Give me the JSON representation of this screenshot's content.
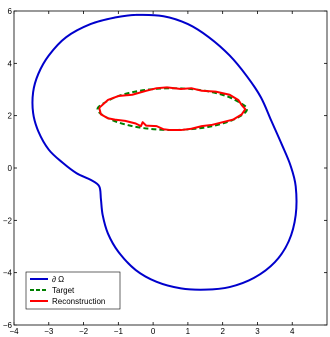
{
  "chart_data": {
    "type": "line",
    "title": "",
    "xlabel": "",
    "ylabel": "",
    "xlim": [
      -4,
      5
    ],
    "ylim": [
      -6,
      6
    ],
    "x_ticks": [
      -4,
      -3,
      -2,
      -1,
      0,
      1,
      2,
      3,
      4
    ],
    "x_tick_labels": [
      "−4",
      "−3",
      "−2",
      "−1",
      "0",
      "1",
      "2",
      "3",
      "4"
    ],
    "y_ticks": [
      -6,
      -4,
      -2,
      0,
      2,
      4,
      6
    ],
    "y_tick_labels": [
      "−6",
      "−4",
      "−2",
      "0",
      "2",
      "4",
      "6"
    ],
    "grid": false,
    "legend_position": "bottom-left",
    "series": [
      {
        "name": "∂ Ω",
        "color": "#0000cc",
        "style": "solid",
        "x": [
          -0.5,
          0.3,
          1.0,
          1.6,
          2.2,
          2.7,
          3.1,
          3.4,
          3.7,
          3.95,
          4.1,
          4.1,
          3.9,
          3.5,
          2.9,
          2.2,
          1.5,
          0.8,
          0.1,
          -0.5,
          -1.0,
          -1.3,
          -1.45,
          -1.5,
          -1.55,
          -1.8,
          -2.2,
          -2.6,
          -3.0,
          -3.3,
          -3.45,
          -3.45,
          -3.3,
          -3.0,
          -2.5,
          -1.8,
          -1.1,
          -0.5
        ],
        "y": [
          5.85,
          5.8,
          5.5,
          5.0,
          4.3,
          3.5,
          2.7,
          1.8,
          0.9,
          0.1,
          -0.7,
          -1.8,
          -2.8,
          -3.6,
          -4.2,
          -4.55,
          -4.65,
          -4.6,
          -4.35,
          -3.9,
          -3.2,
          -2.5,
          -1.8,
          -1.2,
          -0.7,
          -0.45,
          -0.2,
          0.2,
          0.7,
          1.4,
          2.1,
          2.9,
          3.6,
          4.3,
          5.0,
          5.5,
          5.75,
          5.85
        ]
      },
      {
        "name": "Target",
        "color": "#008000",
        "style": "dashed",
        "x": [
          0.55,
          1.4,
          2.1,
          2.55,
          2.7,
          2.55,
          2.1,
          1.4,
          0.55,
          -0.3,
          -1.0,
          -1.45,
          -1.6,
          -1.45,
          -1.0,
          -0.3,
          0.55
        ],
        "y": [
          3.05,
          2.97,
          2.75,
          2.45,
          2.25,
          2.02,
          1.74,
          1.53,
          1.45,
          1.53,
          1.74,
          2.02,
          2.25,
          2.45,
          2.75,
          2.97,
          3.05
        ]
      },
      {
        "name": "Reconstruction",
        "color": "#ff0000",
        "style": "solid",
        "x": [
          -1.55,
          -1.3,
          -1.0,
          -0.6,
          -0.2,
          0.1,
          0.4,
          0.8,
          1.1,
          1.4,
          1.8,
          2.2,
          2.45,
          2.55,
          2.65,
          2.55,
          2.3,
          2.0,
          1.7,
          1.4,
          1.1,
          0.8,
          0.5,
          0.3,
          0.1,
          -0.2,
          -0.3,
          -0.35,
          -0.5,
          -0.8,
          -1.1,
          -1.3,
          -1.5,
          -1.55
        ],
        "y": [
          2.3,
          2.6,
          2.75,
          2.8,
          2.95,
          3.05,
          3.08,
          3.02,
          3.05,
          2.95,
          2.92,
          2.8,
          2.6,
          2.4,
          2.25,
          2.05,
          1.85,
          1.75,
          1.65,
          1.6,
          1.5,
          1.45,
          1.45,
          1.48,
          1.6,
          1.62,
          1.75,
          1.6,
          1.7,
          1.8,
          1.85,
          1.9,
          2.05,
          2.3
        ]
      }
    ]
  }
}
